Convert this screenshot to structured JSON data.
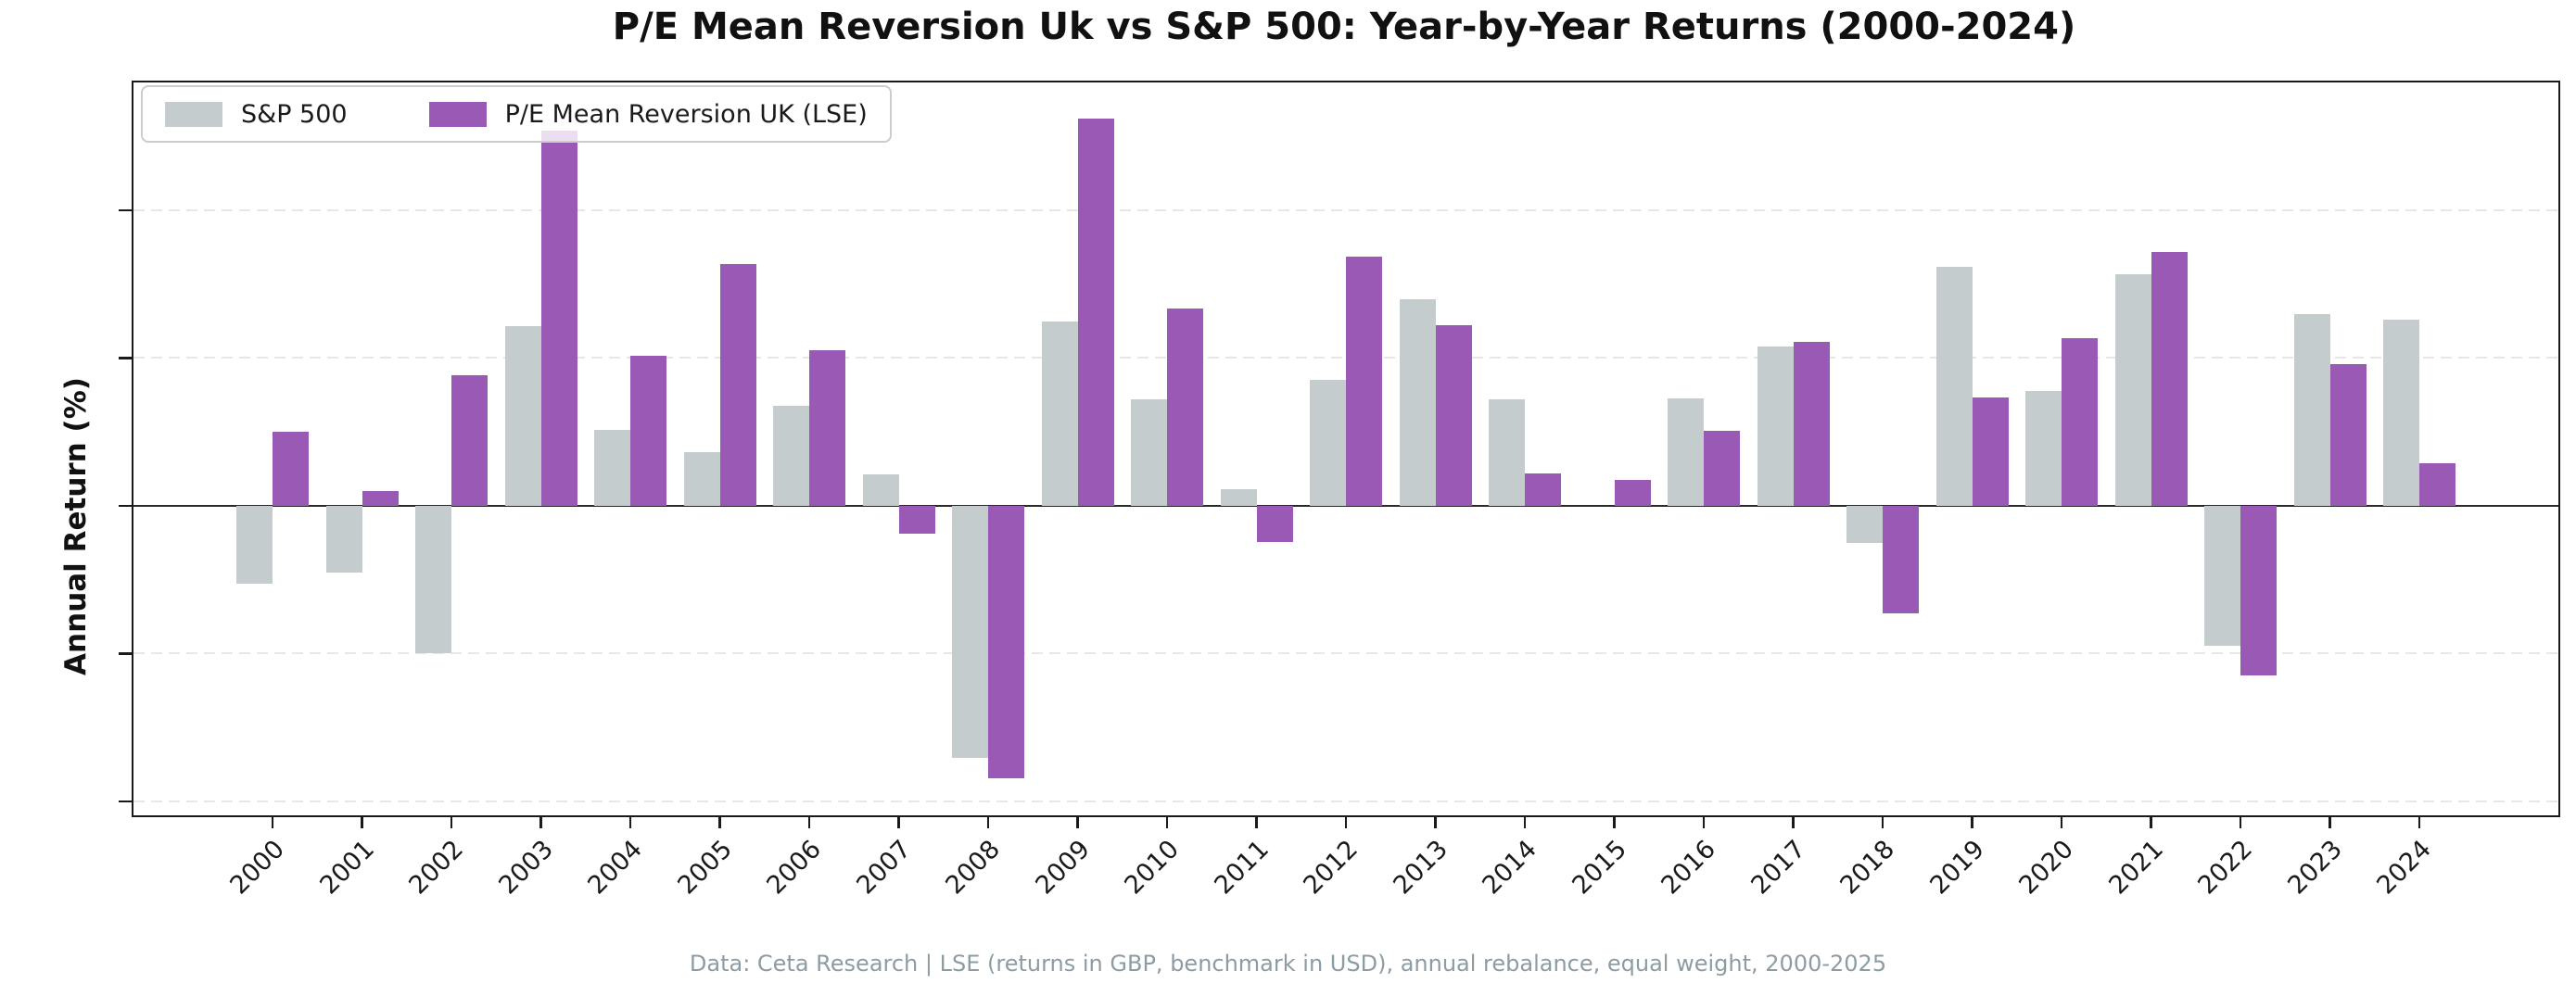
{
  "title": "P/E Mean Reversion Uk vs S&P 500: Year-by-Year Returns (2000-2024)",
  "footer": "Data: Ceta Research | LSE (returns in GBP, benchmark in USD), annual rebalance, equal weight, 2000-2025",
  "y_axis": {
    "label": "Annual Return (%)",
    "ticks": [
      40,
      20,
      0,
      -20,
      -40
    ]
  },
  "legend": {
    "entries": [
      {
        "label": "S&P 500",
        "color": "#c4cccd"
      },
      {
        "label": "P/E Mean Reversion UK (LSE)",
        "color": "#9b59b6"
      }
    ]
  },
  "colors": {
    "sp500_bar": "#c4cccd",
    "uk_bar": "#9b59b6",
    "gridline": "#e7e7e7",
    "zero_line": "#2a2a2a",
    "footer_text": "#8d9ca3"
  },
  "chart_data": {
    "type": "bar",
    "title": "P/E Mean Reversion Uk vs S&P 500: Year-by-Year Returns (2000-2024)",
    "xlabel": "",
    "ylabel": "Annual Return (%)",
    "ylim": [
      -41.9,
      57.3
    ],
    "yticks": [
      40,
      20,
      0,
      -20,
      -40
    ],
    "grid": "y-dashed",
    "legend_position": "upper-left",
    "categories": [
      "2000",
      "2001",
      "2002",
      "2003",
      "2004",
      "2005",
      "2006",
      "2007",
      "2008",
      "2009",
      "2010",
      "2011",
      "2012",
      "2013",
      "2014",
      "2015",
      "2016",
      "2017",
      "2018",
      "2019",
      "2020",
      "2021",
      "2022",
      "2023",
      "2024"
    ],
    "series": [
      {
        "name": "S&P 500",
        "color": "#c4cccd",
        "values": [
          -10.5,
          -9.1,
          -20.0,
          24.3,
          10.3,
          7.2,
          13.5,
          4.3,
          -34.1,
          24.9,
          14.4,
          2.2,
          17.1,
          27.9,
          14.4,
          0.0,
          14.5,
          21.5,
          -5.0,
          32.3,
          15.5,
          31.3,
          -18.9,
          26.0,
          25.2
        ]
      },
      {
        "name": "P/E Mean Reversion UK (LSE)",
        "color": "#9b59b6",
        "values": [
          10.0,
          2.0,
          17.7,
          50.8,
          20.3,
          32.7,
          21.1,
          -3.8,
          -36.9,
          52.4,
          26.7,
          -4.9,
          33.7,
          24.4,
          4.4,
          3.5,
          10.2,
          22.2,
          -14.6,
          14.7,
          22.7,
          34.3,
          -23.0,
          19.2,
          5.7
        ]
      }
    ]
  }
}
